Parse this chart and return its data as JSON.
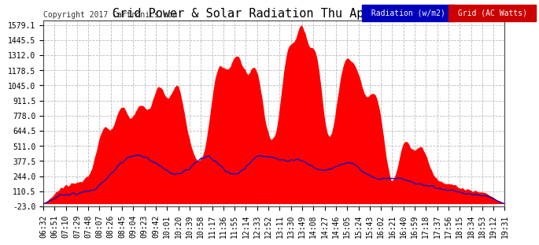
{
  "title": "Grid Power & Solar Radiation Thu Apr 13 19:36",
  "copyright": "Copyright 2017 Cartronics.com",
  "yticks": [
    -23.0,
    110.5,
    244.0,
    377.5,
    511.0,
    644.5,
    778.0,
    911.5,
    1045.0,
    1178.5,
    1312.0,
    1445.5,
    1579.1
  ],
  "ymin": -23.0,
  "ymax": 1620.0,
  "legend_radiation_label": "Radiation (w/m2)",
  "legend_grid_label": "Grid (AC Watts)",
  "radiation_color": "#0000cc",
  "grid_fill_color": "#ff0000",
  "background_color": "#ffffff",
  "plot_bg_color": "#ffffff",
  "grid_line_color": "#bbbbbb",
  "title_fontsize": 11,
  "copyright_fontsize": 7,
  "tick_fontsize": 7
}
